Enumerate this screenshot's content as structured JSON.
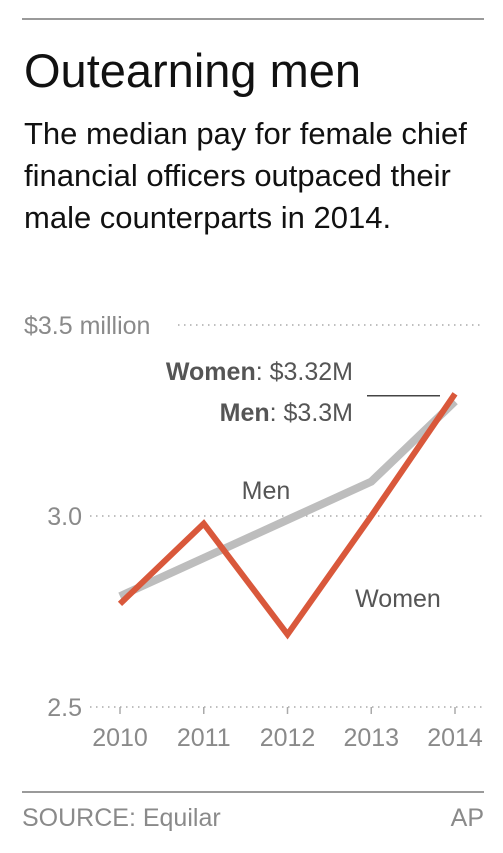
{
  "title": "Outearning men",
  "subtitle": "The median pay for female chief financial officers outpaced their male counterparts in 2014.",
  "source": "SOURCE: Equilar",
  "credit": "AP",
  "colors": {
    "men": "#bdbdbd",
    "women": "#d9583b",
    "grid": "#aaaaaa",
    "axis_text": "#8a8a8a"
  },
  "chart_data": {
    "type": "line",
    "x": [
      "2010",
      "2011",
      "2012",
      "2013",
      "2014"
    ],
    "series": [
      {
        "name": "Men",
        "values": [
          2.79,
          2.89,
          2.99,
          3.09,
          3.3
        ]
      },
      {
        "name": "Women",
        "values": [
          2.77,
          2.98,
          2.69,
          3.0,
          3.32
        ]
      }
    ],
    "ylim": [
      2.5,
      3.5
    ],
    "yticks": [
      {
        "value": 3.5,
        "label": "$3.5 million"
      },
      {
        "value": 3.0,
        "label": "3.0"
      },
      {
        "value": 2.5,
        "label": "2.5"
      }
    ],
    "annotations": {
      "women_value": {
        "name": "Women",
        "sep": ": ",
        "value": "$3.32M"
      },
      "men_value": {
        "name": "Men",
        "sep": ": ",
        "value": "$3.3M"
      }
    },
    "grid": "dotted horizontal"
  }
}
